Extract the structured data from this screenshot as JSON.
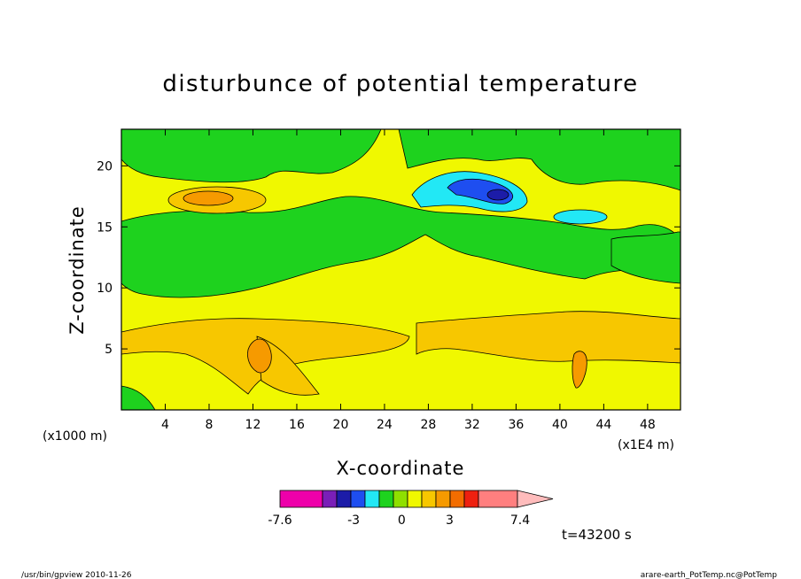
{
  "chart_data": {
    "type": "heatmap",
    "title": "disturbunce of potential temperature",
    "xlabel": "X-coordinate",
    "ylabel": "Z-coordinate",
    "x_unit": "(x1E4 m)",
    "y_unit": "(x1000 m)",
    "xlim": [
      0,
      51
    ],
    "ylim": [
      0,
      23
    ],
    "x_ticks": [
      4,
      8,
      12,
      16,
      20,
      24,
      28,
      32,
      36,
      40,
      44,
      48
    ],
    "y_ticks": [
      5,
      10,
      15,
      20
    ],
    "colorbar": {
      "colors": [
        "#ee00aa",
        "#7a1fb8",
        "#1c1ca8",
        "#1e4ef0",
        "#22e8f5",
        "#1ed21e",
        "#8fe000",
        "#f0f800",
        "#f7c700",
        "#f69a00",
        "#f36d00",
        "#ee2010",
        "#ff7f7f",
        "#ffbcbc"
      ],
      "labels": [
        {
          "value": -7.6,
          "text": "-7.6"
        },
        {
          "value": -3,
          "text": "-3"
        },
        {
          "value": 0,
          "text": "0"
        },
        {
          "value": 3,
          "text": "3"
        },
        {
          "value": 7.4,
          "text": "7.4"
        }
      ]
    },
    "time_label": "t=43200 s"
  },
  "footer": {
    "left": "/usr/bin/gpview   2010-11-26",
    "right": "arare-earth_PotTemp.nc@PotTemp"
  }
}
